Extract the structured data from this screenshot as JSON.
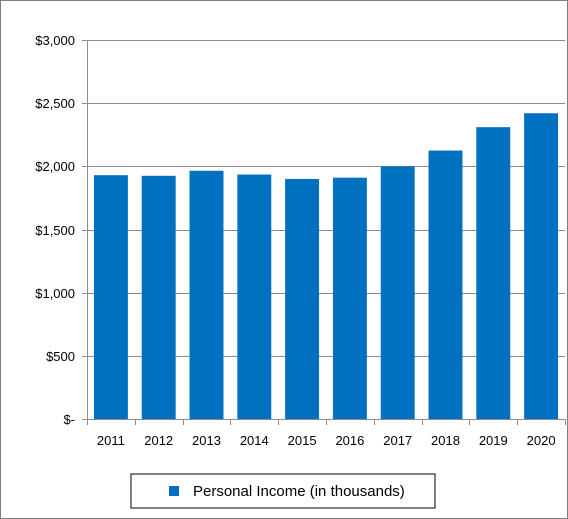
{
  "chart_data": {
    "type": "bar",
    "categories": [
      "2011",
      "2012",
      "2013",
      "2014",
      "2015",
      "2016",
      "2017",
      "2018",
      "2019",
      "2020"
    ],
    "series": [
      {
        "name": "Personal Income (in thousands)",
        "values": [
          1930,
          1925,
          1965,
          1935,
          1900,
          1910,
          2000,
          2125,
          2310,
          2420
        ],
        "color": "#0070c0"
      }
    ],
    "y_ticks": [
      {
        "value": 0,
        "label": "$-"
      },
      {
        "value": 500,
        "label": "$500"
      },
      {
        "value": 1000,
        "label": "$1,000"
      },
      {
        "value": 1500,
        "label": "$1,500"
      },
      {
        "value": 2000,
        "label": "$2,000"
      },
      {
        "value": 2500,
        "label": "$2,500"
      },
      {
        "value": 3000,
        "label": "$3,000"
      }
    ],
    "ylim": [
      0,
      3000
    ],
    "title": "",
    "xlabel": "",
    "ylabel": "",
    "grid": true,
    "legend": {
      "position": "bottom",
      "label": "Personal Income (in thousands)"
    },
    "colors": {
      "bar": "#0070c0",
      "grid": "#8c8c8c",
      "axis": "#8c8c8c",
      "frame": "#7f7f7f"
    }
  }
}
